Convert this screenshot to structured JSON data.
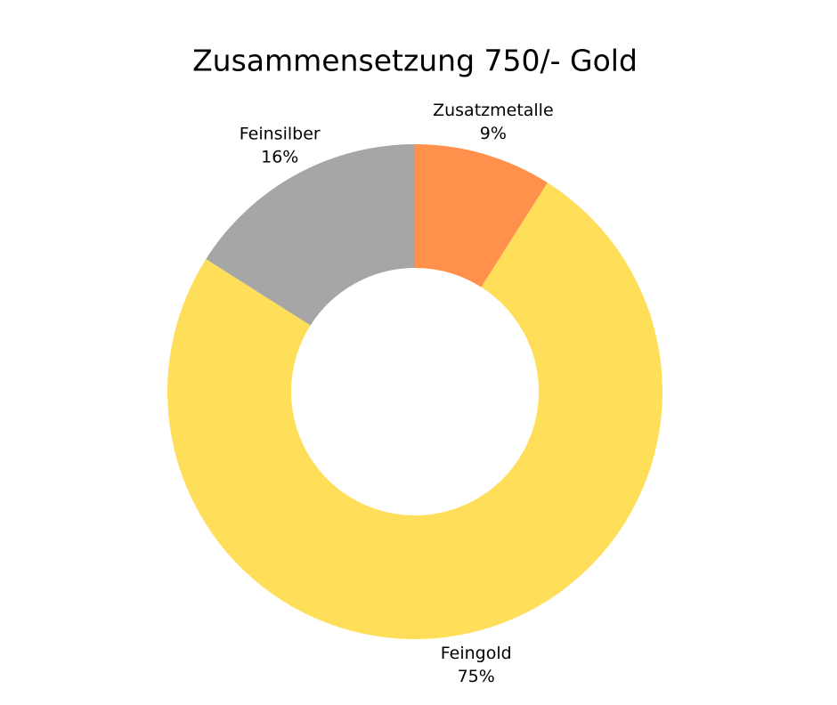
{
  "chart_data": {
    "type": "donut",
    "title": "Zusammensetzung 750/- Gold",
    "categories": [
      "Zusatzmetalle",
      "Feingold",
      "Feinsilber"
    ],
    "values": [
      9,
      75,
      16
    ],
    "value_labels": [
      "9%",
      "75%",
      "16%"
    ],
    "colors": [
      "#FF914D",
      "#FFDE59",
      "#A6A6A6"
    ]
  }
}
